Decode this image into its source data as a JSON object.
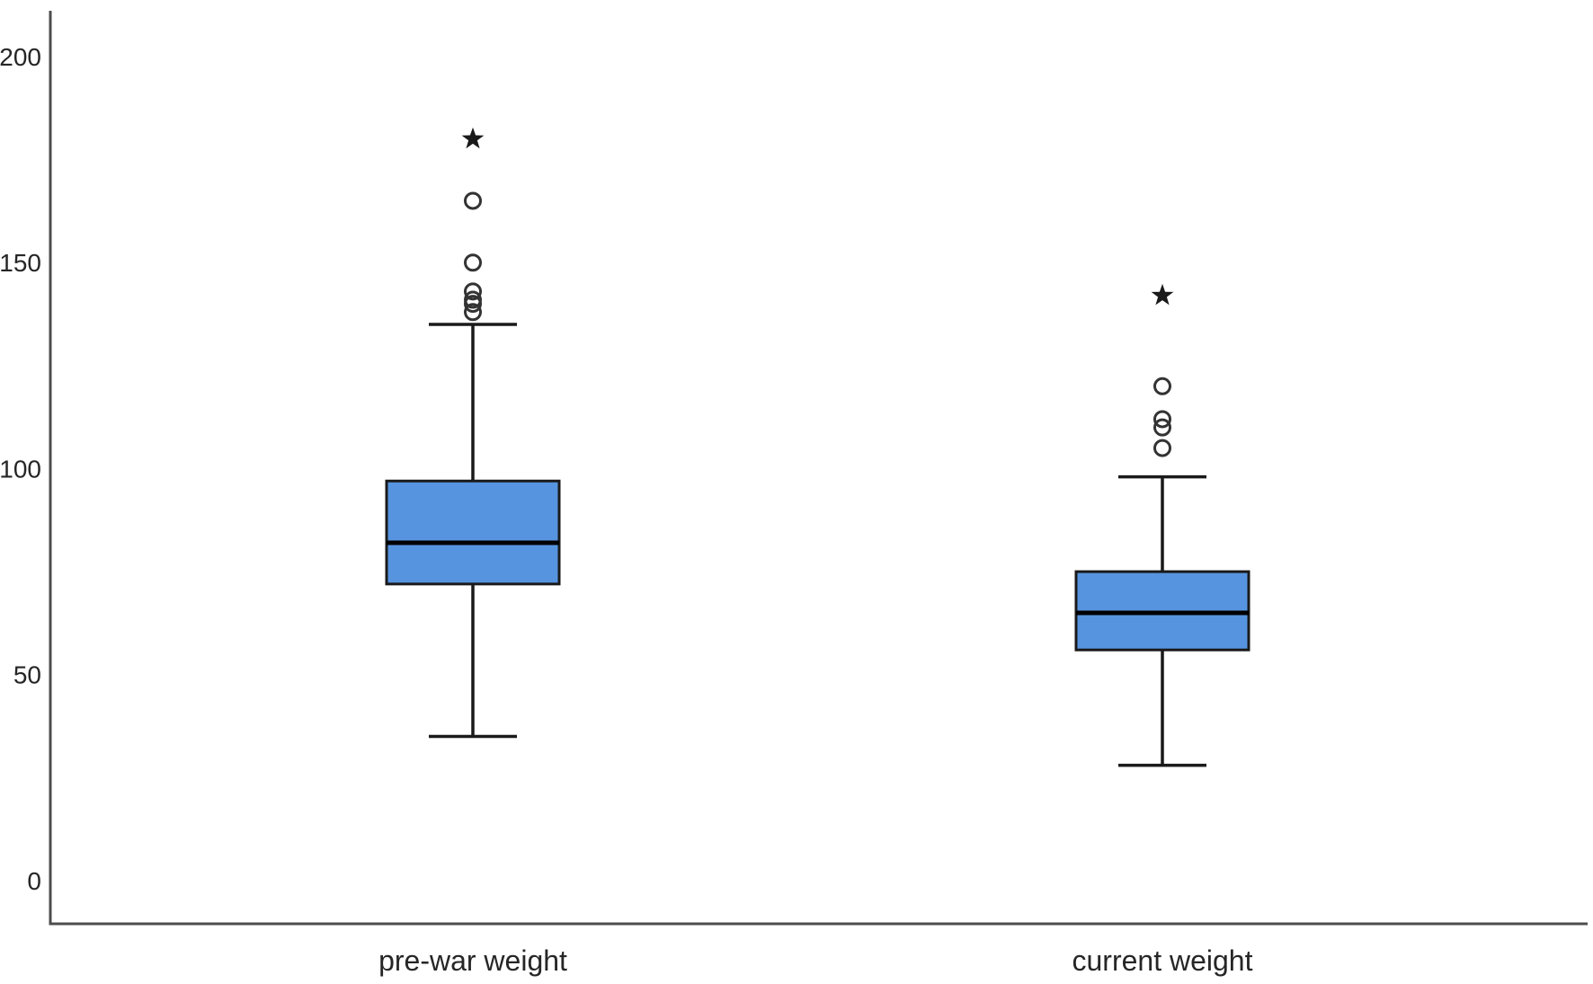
{
  "figure": {
    "background": "#ffffff",
    "title": ""
  },
  "chart_data": {
    "type": "boxplot",
    "title": "",
    "xlabel": "",
    "ylabel": "",
    "categories": [
      "pre-war weight",
      "current weight"
    ],
    "ytick_labels": [
      "0",
      "50",
      "100",
      "150",
      "200"
    ],
    "ytick_values": [
      0,
      50,
      100,
      150,
      200
    ],
    "ylim": [
      -10.5,
      211
    ],
    "grid": false,
    "legend": false,
    "series": [
      {
        "name": "pre-war weight",
        "whisker_low": 35,
        "q1": 72,
        "median": 82,
        "q3": 97,
        "whisker_high": 135,
        "outliers": [
          138,
          140,
          141,
          143,
          150,
          165
        ],
        "extremes": [
          180
        ]
      },
      {
        "name": "current weight",
        "whisker_low": 28,
        "q1": 56,
        "median": 65,
        "q3": 75,
        "whisker_high": 98,
        "outliers": [
          105,
          110,
          112,
          120
        ],
        "extremes": [
          142
        ]
      }
    ],
    "colors": {
      "box_fill": "#5794E0",
      "box_stroke": "#1a1a1a",
      "median": "#000000",
      "whisker": "#1a1a1a",
      "outlier_stroke": "#333333",
      "extreme_fill": "#1a1a1a",
      "axis": "#4d4d4d",
      "text": "#262626"
    }
  }
}
